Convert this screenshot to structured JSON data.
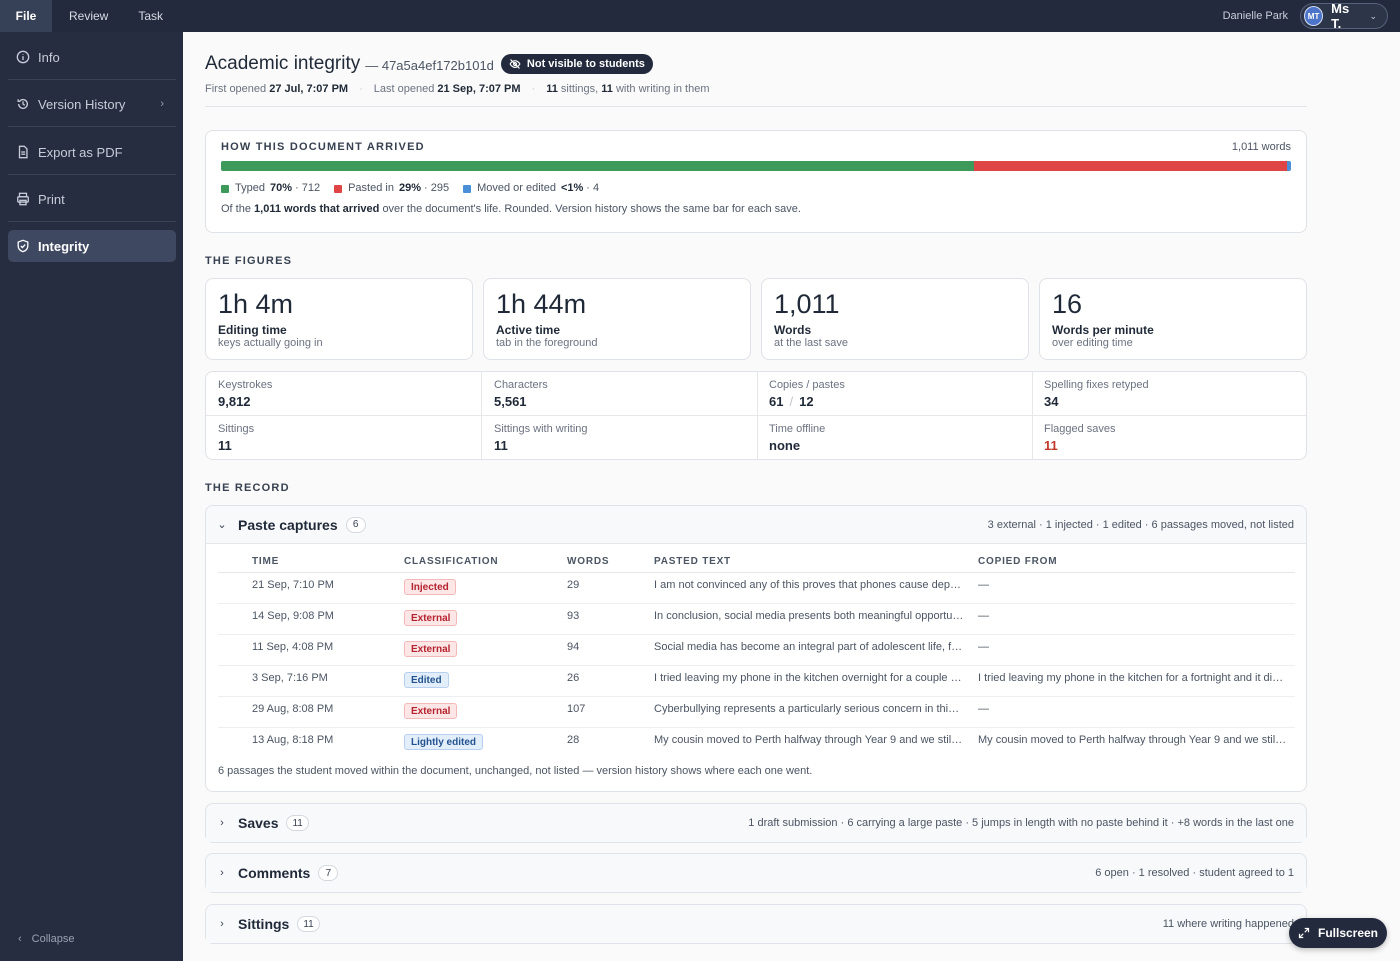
{
  "menu": {
    "tabs": [
      "File",
      "Review",
      "Task"
    ]
  },
  "user": {
    "name": "Danielle Park",
    "initials": "MT",
    "account": "Ms T."
  },
  "sidebar": {
    "items": [
      {
        "label": "Info",
        "icon": "info-icon"
      },
      {
        "label": "Version History",
        "icon": "history-icon"
      },
      {
        "label": "Export as PDF",
        "icon": "document-icon"
      },
      {
        "label": "Print",
        "icon": "printer-icon"
      },
      {
        "label": "Integrity",
        "icon": "shield-icon",
        "active": true
      }
    ],
    "collapse_label": "Collapse"
  },
  "doc": {
    "title": "Academic integrity",
    "id": "— 47a5a4ef172b101d",
    "visibility": "Not visible to students",
    "first_opened_label": "First opened",
    "first_opened": "27 Jul, 7:07 PM",
    "last_opened_label": "Last opened",
    "last_opened": "21 Sep, 7:07 PM",
    "sittings_count": "11",
    "sittings_text": "sittings,",
    "writing_count": "11",
    "writing_text": "with writing in them"
  },
  "arrival": {
    "heading": "HOW THIS DOCUMENT ARRIVED",
    "total": "1,011 words",
    "segments": [
      {
        "label": "Typed",
        "percent": "70%",
        "count": "· 712",
        "share": 0.704,
        "color": "#3e9a5a"
      },
      {
        "label": "Pasted in",
        "percent": "29%",
        "count": "· 295",
        "share": 0.292,
        "color": "#e04545"
      },
      {
        "label": "Moved or edited",
        "percent": "<1%",
        "count": "· 4",
        "share": 0.004,
        "color": "#4a90d9"
      }
    ],
    "note_prefix": "Of the",
    "note_bold": "1,011 words that arrived",
    "note_suffix": "over the document's life. Rounded. Version history shows the same bar for each save."
  },
  "figures": {
    "heading": "THE FIGURES",
    "cards": [
      {
        "value": "1h 4m",
        "label": "Editing time",
        "sub": "keys actually going in"
      },
      {
        "value": "1h 44m",
        "label": "Active time",
        "sub": "tab in the foreground"
      },
      {
        "value": "1,011",
        "label": "Words",
        "sub": "at the last save"
      },
      {
        "value": "16",
        "label": "Words per minute",
        "sub": "over editing time"
      }
    ],
    "stats": [
      {
        "label": "Keystrokes",
        "value": "9,812"
      },
      {
        "label": "Characters",
        "value": "5,561"
      },
      {
        "label": "Copies / pastes",
        "value_a": "61",
        "value_b": "12"
      },
      {
        "label": "Spelling fixes retyped",
        "value": "34"
      },
      {
        "label": "Sittings",
        "value": "11"
      },
      {
        "label": "Sittings with writing",
        "value": "11"
      },
      {
        "label": "Time offline",
        "value": "none"
      },
      {
        "label": "Flagged saves",
        "value": "11"
      }
    ]
  },
  "record": {
    "heading": "THE RECORD",
    "paste": {
      "title": "Paste captures",
      "count": "6",
      "summary": "3 external · 1 injected · 1 edited · 6 passages moved, not listed",
      "columns": [
        "TIME",
        "CLASSIFICATION",
        "WORDS",
        "PASTED TEXT",
        "COPIED FROM"
      ],
      "rows": [
        {
          "time": "21 Sep, 7:10 PM",
          "class": "Injected",
          "tone": "red",
          "words": "29",
          "text": "I am not convinced any of this proves that phones cause depression in teenagers",
          "from": "—"
        },
        {
          "time": "14 Sep, 9:08 PM",
          "class": "External",
          "tone": "red",
          "words": "93",
          "text": "In conclusion, social media presents both meaningful opportunities and risks",
          "from": "—"
        },
        {
          "time": "11 Sep, 4:08 PM",
          "class": "External",
          "tone": "red",
          "words": "94",
          "text": "Social media has become an integral part of adolescent life, fundamentally reshaping",
          "from": "—"
        },
        {
          "time": "3 Sep, 7:16 PM",
          "class": "Edited",
          "tone": "blue",
          "words": "26",
          "text": "I tried leaving my phone in the kitchen overnight for a couple of weeks",
          "from": "I tried leaving my phone in the kitchen for a fortnight and it did help"
        },
        {
          "time": "29 Aug, 8:08 PM",
          "class": "External",
          "tone": "red",
          "words": "107",
          "text": "Cyberbullying represents a particularly serious concern in this context",
          "from": "—"
        },
        {
          "time": "13 Aug, 8:18 PM",
          "class": "Lightly edited",
          "tone": "blue",
          "words": "28",
          "text": "My cousin moved to Perth halfway through Year 9 and we still talk every day",
          "from": "My cousin moved to Perth halfway through Year 9 and we still talk most days"
        }
      ],
      "footer": "6 passages the student moved within the document, unchanged, not listed — version history shows where each one went."
    },
    "saves": {
      "title": "Saves",
      "count": "11",
      "summary": "1 draft submission · 6 carrying a large paste · 5 jumps in length with no paste behind it · +8 words in the last one"
    },
    "comments": {
      "title": "Comments",
      "count": "7",
      "summary": "6 open · 1 resolved · student agreed to 1"
    },
    "sittings": {
      "title": "Sittings",
      "count": "11",
      "summary": "11 where writing happened"
    }
  },
  "fullscreen_label": "Fullscreen"
}
